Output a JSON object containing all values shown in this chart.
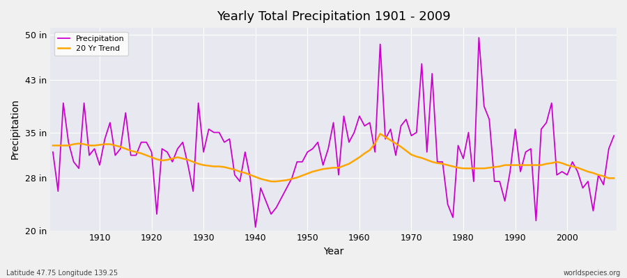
{
  "title": "Yearly Total Precipitation 1901 - 2009",
  "xlabel": "Year",
  "ylabel": "Precipitation",
  "footnote_left": "Latitude 47.75 Longitude 139.25",
  "footnote_right": "worldspecies.org",
  "precip_color": "#cc00cc",
  "trend_color": "#ffa500",
  "bg_color": "#f0f0f0",
  "plot_bg_color": "#e8e8f0",
  "grid_color": "#ffffff",
  "ylim": [
    20,
    51
  ],
  "yticks": [
    20,
    28,
    35,
    43,
    50
  ],
  "ytick_labels": [
    "20 in",
    "28 in",
    "35 in",
    "43 in",
    "50 in"
  ],
  "years": [
    1901,
    1902,
    1903,
    1904,
    1905,
    1906,
    1907,
    1908,
    1909,
    1910,
    1911,
    1912,
    1913,
    1914,
    1915,
    1916,
    1917,
    1918,
    1919,
    1920,
    1921,
    1922,
    1923,
    1924,
    1925,
    1926,
    1927,
    1928,
    1929,
    1930,
    1931,
    1932,
    1933,
    1934,
    1935,
    1936,
    1937,
    1938,
    1939,
    1940,
    1941,
    1942,
    1943,
    1944,
    1945,
    1946,
    1947,
    1948,
    1949,
    1950,
    1951,
    1952,
    1953,
    1954,
    1955,
    1956,
    1957,
    1958,
    1959,
    1960,
    1961,
    1962,
    1963,
    1964,
    1965,
    1966,
    1967,
    1968,
    1969,
    1970,
    1971,
    1972,
    1973,
    1974,
    1975,
    1976,
    1977,
    1978,
    1979,
    1980,
    1981,
    1982,
    1983,
    1984,
    1985,
    1986,
    1987,
    1988,
    1989,
    1990,
    1991,
    1992,
    1993,
    1994,
    1995,
    1996,
    1997,
    1998,
    1999,
    2000,
    2001,
    2002,
    2003,
    2004,
    2005,
    2006,
    2007,
    2008,
    2009
  ],
  "precip": [
    32.0,
    26.0,
    39.5,
    33.5,
    30.5,
    29.5,
    39.5,
    31.5,
    32.5,
    30.0,
    34.0,
    36.5,
    31.5,
    32.5,
    38.0,
    31.5,
    31.5,
    33.5,
    33.5,
    32.0,
    22.5,
    32.5,
    32.0,
    30.5,
    32.5,
    33.5,
    30.0,
    26.0,
    39.5,
    32.0,
    35.5,
    35.0,
    35.0,
    33.5,
    34.0,
    28.5,
    27.5,
    32.0,
    28.0,
    20.5,
    26.5,
    24.5,
    22.5,
    23.5,
    25.0,
    26.5,
    28.0,
    30.5,
    30.5,
    32.0,
    32.5,
    33.5,
    30.0,
    32.5,
    36.5,
    28.5,
    37.5,
    33.5,
    35.0,
    37.5,
    36.0,
    36.5,
    32.0,
    48.5,
    34.0,
    35.5,
    31.5,
    36.0,
    37.0,
    34.5,
    35.0,
    45.5,
    32.0,
    44.0,
    30.5,
    30.5,
    24.0,
    22.0,
    33.0,
    31.0,
    35.0,
    27.5,
    49.5,
    39.0,
    37.0,
    27.5,
    27.5,
    24.5,
    29.0,
    35.5,
    29.0,
    32.0,
    32.5,
    21.5,
    35.5,
    36.5,
    39.5,
    28.5,
    29.0,
    28.5,
    30.5,
    29.0,
    26.5,
    27.5,
    23.0,
    28.5,
    27.0,
    32.5,
    34.5
  ],
  "trend": [
    33.0,
    33.0,
    33.0,
    33.0,
    33.2,
    33.3,
    33.2,
    33.0,
    33.0,
    33.1,
    33.2,
    33.2,
    33.0,
    32.8,
    32.5,
    32.2,
    32.0,
    31.8,
    31.5,
    31.2,
    30.9,
    30.7,
    30.8,
    31.0,
    31.2,
    31.0,
    30.8,
    30.5,
    30.2,
    30.0,
    29.9,
    29.8,
    29.8,
    29.7,
    29.5,
    29.3,
    29.0,
    28.8,
    28.5,
    28.2,
    27.9,
    27.7,
    27.5,
    27.5,
    27.6,
    27.7,
    27.9,
    28.1,
    28.4,
    28.7,
    29.0,
    29.2,
    29.4,
    29.5,
    29.6,
    29.6,
    29.9,
    30.2,
    30.7,
    31.2,
    31.8,
    32.3,
    33.3,
    34.8,
    34.3,
    33.8,
    33.3,
    32.8,
    32.2,
    31.6,
    31.3,
    31.1,
    30.8,
    30.5,
    30.3,
    30.2,
    30.0,
    29.8,
    29.6,
    29.5,
    29.5,
    29.5,
    29.5,
    29.5,
    29.6,
    29.7,
    29.8,
    30.0,
    30.0,
    30.0,
    30.0,
    30.0,
    30.0,
    30.0,
    30.0,
    30.2,
    30.3,
    30.5,
    30.3,
    30.0,
    29.8,
    29.6,
    29.3,
    29.0,
    28.8,
    28.5,
    28.3,
    28.0,
    28.0
  ]
}
